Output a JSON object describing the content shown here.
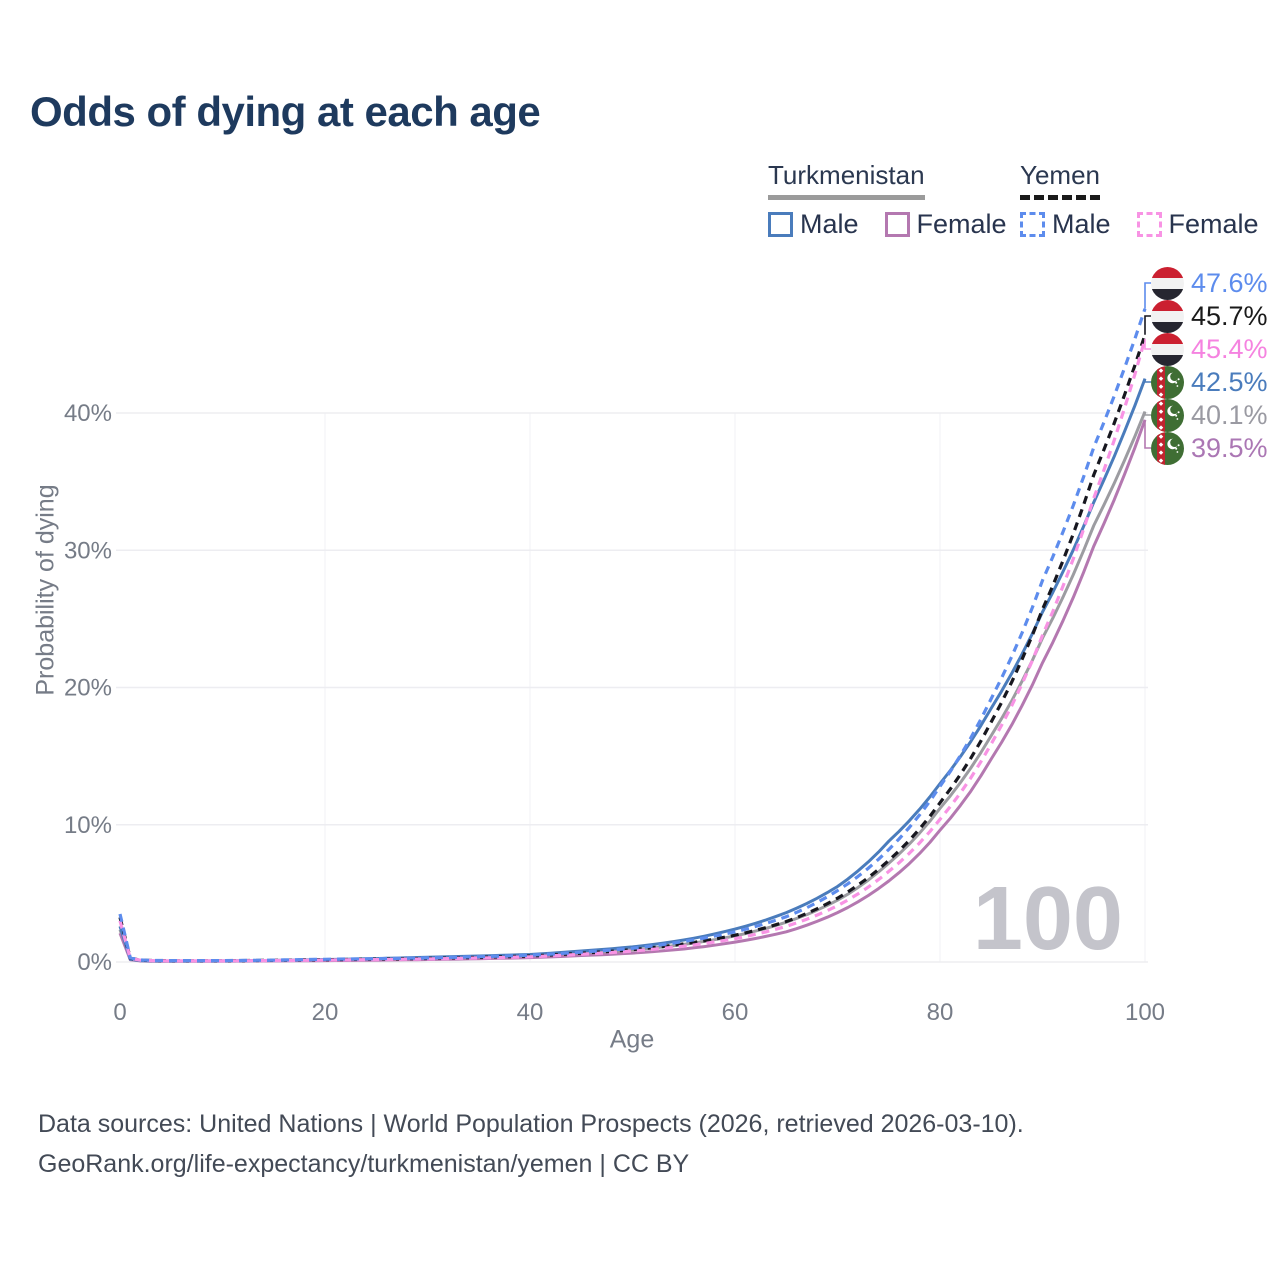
{
  "title": "Odds of dying at each age",
  "watermark": "100",
  "legend": {
    "groups": [
      {
        "name": "Turkmenistan",
        "underline_color": "#9b9b9b",
        "underline_style": "solid",
        "items": [
          {
            "label": "Male",
            "color": "#4a7cbc",
            "dashed": false
          },
          {
            "label": "Female",
            "color": "#b478b0",
            "dashed": false
          }
        ]
      },
      {
        "name": "Yemen",
        "underline_color": "#1a1a1a",
        "underline_style": "dashed",
        "items": [
          {
            "label": "Male",
            "color": "#5d8ced",
            "dashed": true
          },
          {
            "label": "Female",
            "color": "#f893e4",
            "dashed": true
          }
        ]
      }
    ]
  },
  "axes": {
    "x": {
      "title": "Age",
      "ticks": [
        {
          "value": 0,
          "label": "0"
        },
        {
          "value": 20,
          "label": "20"
        },
        {
          "value": 40,
          "label": "40"
        },
        {
          "value": 60,
          "label": "60"
        },
        {
          "value": 80,
          "label": "80"
        },
        {
          "value": 100,
          "label": "100"
        }
      ]
    },
    "y": {
      "title": "Probability of dying",
      "ticks": [
        {
          "value": 0,
          "label": "0%"
        },
        {
          "value": 10,
          "label": "10%"
        },
        {
          "value": 20,
          "label": "20%"
        },
        {
          "value": 30,
          "label": "30%"
        },
        {
          "value": 40,
          "label": "40%"
        }
      ]
    }
  },
  "footer": {
    "line1": "Data sources: United Nations | World Population Prospects (2026, retrieved 2026-03-10).",
    "line2": "GeoRank.org/life-expectancy/turkmenistan/yemen | CC BY"
  },
  "chart_data": {
    "type": "line",
    "title": "Odds of dying at each age",
    "xlabel": "Age",
    "ylabel": "Probability of dying",
    "y_unit": "percent",
    "xlim": [
      0,
      100
    ],
    "ylim": [
      0,
      48
    ],
    "grid": true,
    "hover_age": 100,
    "x": [
      0,
      1,
      2,
      3,
      5,
      10,
      20,
      30,
      40,
      45,
      50,
      55,
      60,
      65,
      70,
      75,
      80,
      85,
      90,
      95,
      100
    ],
    "series": [
      {
        "name": "Turkmenistan Total",
        "country": "Turkmenistan",
        "sex": "both",
        "style": "solid",
        "color": "#9c9ca1",
        "label_color": "#9a9aa2",
        "flag": "turkmenistan",
        "end_label": "40.1%",
        "end_value": 40.1,
        "values": [
          2.35,
          0.18,
          0.09,
          0.07,
          0.06,
          0.07,
          0.14,
          0.27,
          0.44,
          0.63,
          0.88,
          1.28,
          1.9,
          2.9,
          4.5,
          7.2,
          11.2,
          16.5,
          23.6,
          31.8,
          40.1
        ]
      },
      {
        "name": "Turkmenistan Female",
        "country": "Turkmenistan",
        "sex": "female",
        "style": "solid",
        "color": "#b478b0",
        "label_color": "#ab77b4",
        "flag": "turkmenistan",
        "end_label": "39.5%",
        "end_value": 39.5,
        "values": [
          2.1,
          0.16,
          0.08,
          0.06,
          0.05,
          0.06,
          0.1,
          0.18,
          0.32,
          0.47,
          0.65,
          0.95,
          1.45,
          2.2,
          3.6,
          5.9,
          9.6,
          14.8,
          21.8,
          30.3,
          39.5
        ]
      },
      {
        "name": "Turkmenistan Male",
        "country": "Turkmenistan",
        "sex": "male",
        "style": "solid",
        "color": "#4a7cbc",
        "label_color": "#4a7cbc",
        "flag": "turkmenistan",
        "end_label": "42.5%",
        "end_value": 42.5,
        "values": [
          2.6,
          0.2,
          0.1,
          0.08,
          0.07,
          0.08,
          0.18,
          0.35,
          0.55,
          0.8,
          1.1,
          1.6,
          2.4,
          3.6,
          5.5,
          8.8,
          13.0,
          18.5,
          25.5,
          33.5,
          42.5
        ]
      },
      {
        "name": "Yemen Total",
        "country": "Yemen",
        "sex": "both",
        "style": "dashed",
        "color": "#17171f",
        "label_color": "#1a1a1a",
        "flag": "yemen",
        "end_label": "45.7%",
        "end_value": 45.7,
        "values": [
          3.25,
          0.28,
          0.14,
          0.11,
          0.09,
          0.09,
          0.17,
          0.26,
          0.44,
          0.64,
          0.9,
          1.32,
          1.95,
          2.95,
          4.65,
          7.4,
          11.6,
          17.5,
          25.7,
          35.5,
          45.7
        ]
      },
      {
        "name": "Yemen Female",
        "country": "Yemen",
        "sex": "female",
        "style": "dashed",
        "color": "#f893e4",
        "label_color": "#f583e0",
        "flag": "yemen",
        "end_label": "45.4%",
        "end_value": 45.4,
        "values": [
          3.0,
          0.26,
          0.13,
          0.1,
          0.08,
          0.08,
          0.14,
          0.22,
          0.38,
          0.56,
          0.8,
          1.15,
          1.7,
          2.6,
          4.1,
          6.6,
          10.4,
          15.9,
          23.8,
          33.8,
          45.4
        ]
      },
      {
        "name": "Yemen Male",
        "country": "Yemen",
        "sex": "male",
        "style": "dashed",
        "color": "#5d8ced",
        "label_color": "#5d8ced",
        "flag": "yemen",
        "end_label": "47.6%",
        "end_value": 47.6,
        "values": [
          3.5,
          0.3,
          0.15,
          0.12,
          0.1,
          0.1,
          0.2,
          0.3,
          0.5,
          0.72,
          1.0,
          1.5,
          2.2,
          3.3,
          5.2,
          8.2,
          12.8,
          19.2,
          27.8,
          37.5,
          47.6
        ]
      }
    ]
  }
}
